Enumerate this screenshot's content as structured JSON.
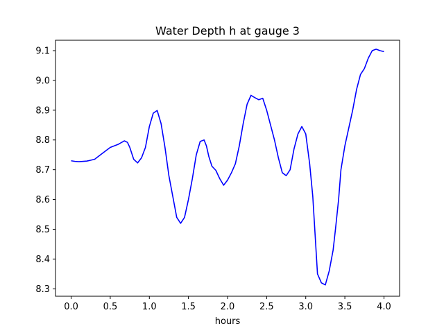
{
  "chart_data": {
    "type": "line",
    "title": "Water Depth h at gauge 3",
    "xlabel": "hours",
    "ylabel": "",
    "xlim": [
      -0.2,
      4.2
    ],
    "ylim": [
      8.275,
      9.135
    ],
    "xticks": [
      0.0,
      0.5,
      1.0,
      1.5,
      2.0,
      2.5,
      3.0,
      3.5,
      4.0
    ],
    "xtick_labels": [
      "0.0",
      "0.5",
      "1.0",
      "1.5",
      "2.0",
      "2.5",
      "3.0",
      "3.5",
      "4.0"
    ],
    "yticks": [
      8.3,
      8.4,
      8.5,
      8.6,
      8.7,
      8.8,
      8.9,
      9.0,
      9.1
    ],
    "ytick_labels": [
      "8.3",
      "8.4",
      "8.5",
      "8.6",
      "8.7",
      "8.8",
      "8.9",
      "9.0",
      "9.1"
    ],
    "grid": false,
    "legend": "none",
    "series": [
      {
        "color": "#0000ff",
        "x": [
          0.0,
          0.05,
          0.1,
          0.2,
          0.3,
          0.4,
          0.5,
          0.6,
          0.68,
          0.72,
          0.75,
          0.8,
          0.85,
          0.9,
          0.95,
          1.0,
          1.05,
          1.1,
          1.15,
          1.2,
          1.25,
          1.3,
          1.35,
          1.4,
          1.45,
          1.5,
          1.55,
          1.6,
          1.65,
          1.7,
          1.73,
          1.76,
          1.8,
          1.85,
          1.9,
          1.95,
          2.0,
          2.05,
          2.1,
          2.15,
          2.2,
          2.25,
          2.3,
          2.35,
          2.4,
          2.45,
          2.5,
          2.55,
          2.6,
          2.65,
          2.7,
          2.75,
          2.8,
          2.85,
          2.9,
          2.95,
          3.0,
          3.05,
          3.09,
          3.12,
          3.15,
          3.2,
          3.25,
          3.3,
          3.35,
          3.38,
          3.42,
          3.45,
          3.5,
          3.55,
          3.6,
          3.65,
          3.7,
          3.75,
          3.8,
          3.85,
          3.9,
          3.95,
          3.98,
          4.0
        ],
        "y": [
          8.73,
          8.728,
          8.727,
          8.729,
          8.735,
          8.755,
          8.775,
          8.785,
          8.797,
          8.792,
          8.775,
          8.735,
          8.723,
          8.74,
          8.775,
          8.845,
          8.89,
          8.899,
          8.855,
          8.775,
          8.68,
          8.61,
          8.54,
          8.52,
          8.54,
          8.6,
          8.67,
          8.75,
          8.795,
          8.8,
          8.78,
          8.745,
          8.712,
          8.698,
          8.67,
          8.648,
          8.665,
          8.69,
          8.72,
          8.78,
          8.855,
          8.92,
          8.95,
          8.942,
          8.935,
          8.94,
          8.9,
          8.85,
          8.8,
          8.74,
          8.69,
          8.68,
          8.7,
          8.77,
          8.82,
          8.845,
          8.82,
          8.72,
          8.61,
          8.48,
          8.35,
          8.32,
          8.313,
          8.36,
          8.43,
          8.5,
          8.6,
          8.7,
          8.78,
          8.84,
          8.9,
          8.97,
          9.02,
          9.04,
          9.075,
          9.1,
          9.105,
          9.1,
          9.098,
          9.097
        ]
      }
    ]
  }
}
